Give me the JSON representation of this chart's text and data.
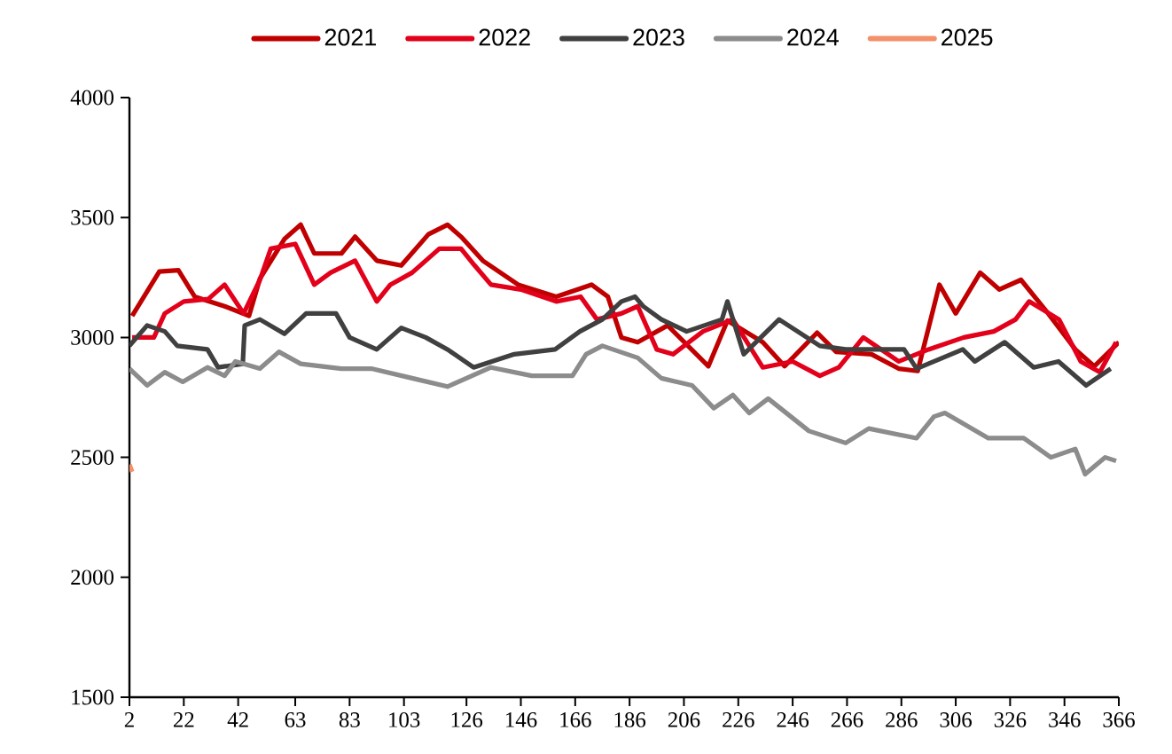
{
  "chart_data": {
    "type": "line",
    "legend": "top",
    "marker": "none",
    "line_style": "solid",
    "xlim": [
      2,
      366
    ],
    "ylim": [
      1500,
      4000
    ],
    "yticks": [
      1500,
      2000,
      2500,
      3000,
      3500,
      4000
    ],
    "xticks": [
      2,
      22,
      42,
      63,
      83,
      103,
      126,
      146,
      166,
      186,
      206,
      226,
      246,
      266,
      286,
      306,
      326,
      346,
      366
    ],
    "series": [
      {
        "name": "2021",
        "color": "#c00000",
        "x": [
          3,
          13,
          20,
          26,
          37,
          46,
          50,
          59,
          65,
          70,
          80,
          85,
          93,
          102,
          112,
          119,
          124,
          132,
          145,
          159,
          172,
          178,
          183,
          189,
          200,
          215,
          222,
          235,
          243,
          255,
          262,
          275,
          285,
          292,
          300,
          306,
          315,
          322,
          330,
          340,
          350,
          357,
          366
        ],
        "values": [
          3090,
          3275,
          3280,
          3170,
          3130,
          3090,
          3245,
          3410,
          3470,
          3350,
          3350,
          3420,
          3320,
          3300,
          3430,
          3470,
          3420,
          3320,
          3220,
          3170,
          3220,
          3170,
          3000,
          2980,
          3050,
          2880,
          3070,
          2980,
          2880,
          3020,
          2940,
          2930,
          2870,
          2860,
          3220,
          3100,
          3270,
          3200,
          3240,
          3100,
          2950,
          2880,
          2980
        ]
      },
      {
        "name": "2022",
        "color": "#e3001b",
        "x": [
          3,
          11,
          15,
          22,
          31,
          37,
          44,
          50,
          54,
          63,
          70,
          76,
          85,
          93,
          98,
          106,
          116,
          124,
          129,
          135,
          146,
          159,
          168,
          174,
          183,
          189,
          196,
          202,
          213,
          224,
          235,
          246,
          256,
          263,
          272,
          285,
          296,
          309,
          320,
          328,
          333,
          344,
          352,
          359,
          365
        ],
        "values": [
          3000,
          3000,
          3100,
          3150,
          3160,
          3220,
          3100,
          3240,
          3370,
          3390,
          3220,
          3270,
          3320,
          3150,
          3220,
          3270,
          3370,
          3370,
          3300,
          3220,
          3200,
          3150,
          3170,
          3075,
          3100,
          3130,
          2950,
          2930,
          3025,
          3075,
          2875,
          2900,
          2840,
          2875,
          3000,
          2900,
          2950,
          3000,
          3025,
          3075,
          3150,
          3075,
          2900,
          2855,
          2980
        ]
      },
      {
        "name": "2023",
        "color": "#404040",
        "x": [
          2,
          8.5,
          15,
          19.6,
          30.7,
          34.6,
          43.7,
          44.4,
          50,
          59,
          67,
          78,
          83,
          93,
          102,
          111,
          119,
          128.6,
          143.6,
          158.6,
          167.7,
          176,
          183,
          188,
          191,
          197.7,
          207,
          220,
          222,
          228,
          241,
          256,
          265.5,
          287,
          291.6,
          308.6,
          313,
          324,
          334.7,
          343.8,
          354,
          363
        ],
        "values": [
          2965,
          3050,
          3025,
          2965,
          2950,
          2875,
          2890,
          3050,
          3075,
          3015,
          3100,
          3100,
          3000,
          2950,
          3040,
          3000,
          2950,
          2875,
          2930,
          2950,
          3025,
          3075,
          3150,
          3170,
          3130,
          3075,
          3025,
          3075,
          3150,
          2930,
          3075,
          2965,
          2950,
          2950,
          2870,
          2950,
          2900,
          2980,
          2875,
          2900,
          2800,
          2870
        ]
      },
      {
        "name": "2024",
        "color": "#8c8c8c",
        "x": [
          2,
          8.5,
          15,
          21.6,
          30.7,
          37,
          41,
          50,
          57,
          65,
          80,
          91,
          106,
          119,
          126,
          135,
          150,
          165,
          170,
          176,
          189,
          197.7,
          209,
          217,
          224,
          230,
          237,
          252,
          265.5,
          274,
          291.6,
          298,
          302,
          318,
          331,
          341,
          350,
          353.6,
          361,
          365
        ],
        "values": [
          2870,
          2800,
          2855,
          2815,
          2875,
          2840,
          2900,
          2870,
          2940,
          2890,
          2870,
          2870,
          2830,
          2795,
          2830,
          2875,
          2840,
          2840,
          2930,
          2965,
          2915,
          2830,
          2800,
          2705,
          2760,
          2685,
          2745,
          2610,
          2560,
          2620,
          2580,
          2670,
          2685,
          2580,
          2580,
          2500,
          2535,
          2430,
          2500,
          2485
        ]
      },
      {
        "name": "2025",
        "color": "#f4916b",
        "x": [
          2,
          3
        ],
        "values": [
          2470,
          2440
        ]
      }
    ]
  }
}
